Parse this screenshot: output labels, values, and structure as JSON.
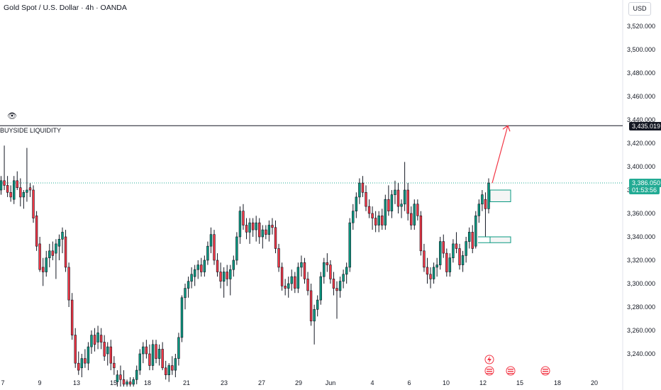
{
  "header": {
    "title": "Gold Spot / U.S. Dollar · 4h · OANDA",
    "currency": "USD"
  },
  "y_axis": [
    "3,520.000",
    "3,500.000",
    "3,480.000",
    "3,460.000",
    "3,440.000",
    "3,420.000",
    "3,400.000",
    "3,380.000",
    "3,360.000",
    "3,340.000",
    "3,320.000",
    "3,300.000",
    "3,280.000",
    "3,260.000",
    "3,240.000"
  ],
  "x_axis": [
    "7",
    "9",
    "13",
    "15",
    "18",
    "21",
    "23",
    "27",
    "29",
    "Jun",
    "4",
    "6",
    "10",
    "12",
    "15",
    "18",
    "20"
  ],
  "level_label": "3,435.019",
  "price_label": "3,386.050",
  "timer_label": "01:53:56",
  "annotation": "BUYSIDE LIQUIDITY",
  "icons": [
    "eye-icon",
    "lightning-icon",
    "us-flag-icon"
  ],
  "colors": {
    "up": "#089981",
    "down": "#f23645",
    "arrow": "#f23645",
    "level": "#131722",
    "price": "#22ab94"
  },
  "chart_data": {
    "type": "candlestick",
    "title": "Gold Spot / U.S. Dollar · 4h · OANDA",
    "ylim": [
      3212,
      3536
    ],
    "levels": [
      {
        "name": "BUYSIDE LIQUIDITY",
        "value": 3435.019
      }
    ],
    "current_price": 3386.05,
    "target_arrow": {
      "from": 3386,
      "to": 3435
    },
    "zones": [
      [
        3370,
        3380
      ],
      [
        3335,
        3340
      ]
    ],
    "candles_ohlc": [
      [
        3380,
        3392,
        3376,
        3388
      ],
      [
        3388,
        3418,
        3380,
        3384
      ],
      [
        3384,
        3392,
        3374,
        3378
      ],
      [
        3378,
        3384,
        3370,
        3374
      ],
      [
        3372,
        3392,
        3368,
        3388
      ],
      [
        3388,
        3396,
        3380,
        3382
      ],
      [
        3382,
        3390,
        3366,
        3374
      ],
      [
        3374,
        3380,
        3364,
        3378
      ],
      [
        3378,
        3416,
        3370,
        3380
      ],
      [
        3382,
        3386,
        3374,
        3380
      ],
      [
        3380,
        3384,
        3352,
        3356
      ],
      [
        3358,
        3362,
        3328,
        3332
      ],
      [
        3334,
        3340,
        3310,
        3312
      ],
      [
        3314,
        3322,
        3298,
        3310
      ],
      [
        3310,
        3328,
        3306,
        3322
      ],
      [
        3322,
        3334,
        3314,
        3328
      ],
      [
        3328,
        3336,
        3320,
        3324
      ],
      [
        3326,
        3338,
        3304,
        3334
      ],
      [
        3332,
        3342,
        3320,
        3338
      ],
      [
        3338,
        3348,
        3326,
        3344
      ],
      [
        3340,
        3346,
        3310,
        3314
      ],
      [
        3314,
        3318,
        3280,
        3286
      ],
      [
        3286,
        3292,
        3252,
        3256
      ],
      [
        3256,
        3262,
        3228,
        3232
      ],
      [
        3232,
        3242,
        3222,
        3226
      ],
      [
        3228,
        3240,
        3220,
        3236
      ],
      [
        3236,
        3244,
        3228,
        3232
      ],
      [
        3232,
        3250,
        3226,
        3246
      ],
      [
        3246,
        3260,
        3240,
        3256
      ],
      [
        3256,
        3262,
        3242,
        3248
      ],
      [
        3250,
        3264,
        3244,
        3258
      ],
      [
        3256,
        3262,
        3244,
        3250
      ],
      [
        3250,
        3256,
        3234,
        3238
      ],
      [
        3240,
        3250,
        3230,
        3246
      ],
      [
        3246,
        3252,
        3226,
        3232
      ],
      [
        3232,
        3238,
        3222,
        3228
      ],
      [
        3216,
        3226,
        3212,
        3222
      ],
      [
        3222,
        3230,
        3212,
        3218
      ],
      [
        3218,
        3226,
        3212,
        3214
      ],
      [
        3214,
        3218,
        3212,
        3216
      ],
      [
        3216,
        3220,
        3212,
        3214
      ],
      [
        3214,
        3220,
        3212,
        3218
      ],
      [
        3218,
        3230,
        3214,
        3226
      ],
      [
        3226,
        3244,
        3222,
        3240
      ],
      [
        3240,
        3250,
        3232,
        3246
      ],
      [
        3246,
        3252,
        3236,
        3240
      ],
      [
        3240,
        3248,
        3226,
        3230
      ],
      [
        3230,
        3252,
        3226,
        3248
      ],
      [
        3248,
        3252,
        3232,
        3236
      ],
      [
        3236,
        3248,
        3230,
        3244
      ],
      [
        3244,
        3250,
        3226,
        3228
      ],
      [
        3228,
        3234,
        3218,
        3222
      ],
      [
        3222,
        3232,
        3216,
        3230
      ],
      [
        3230,
        3238,
        3222,
        3226
      ],
      [
        3226,
        3240,
        3220,
        3236
      ],
      [
        3236,
        3258,
        3230,
        3254
      ],
      [
        3254,
        3290,
        3250,
        3288
      ],
      [
        3288,
        3300,
        3278,
        3296
      ],
      [
        3296,
        3306,
        3288,
        3302
      ],
      [
        3302,
        3314,
        3296,
        3308
      ],
      [
        3306,
        3316,
        3298,
        3312
      ],
      [
        3312,
        3320,
        3304,
        3316
      ],
      [
        3316,
        3322,
        3306,
        3310
      ],
      [
        3310,
        3324,
        3306,
        3320
      ],
      [
        3320,
        3336,
        3316,
        3332
      ],
      [
        3332,
        3348,
        3326,
        3342
      ],
      [
        3342,
        3346,
        3316,
        3320
      ],
      [
        3320,
        3326,
        3306,
        3310
      ],
      [
        3310,
        3318,
        3296,
        3302
      ],
      [
        3302,
        3314,
        3288,
        3310
      ],
      [
        3310,
        3316,
        3298,
        3304
      ],
      [
        3304,
        3316,
        3290,
        3312
      ],
      [
        3312,
        3324,
        3306,
        3320
      ],
      [
        3320,
        3344,
        3316,
        3340
      ],
      [
        3340,
        3366,
        3334,
        3362
      ],
      [
        3362,
        3368,
        3346,
        3350
      ],
      [
        3350,
        3356,
        3338,
        3344
      ],
      [
        3344,
        3356,
        3334,
        3352
      ],
      [
        3352,
        3356,
        3340,
        3346
      ],
      [
        3346,
        3358,
        3336,
        3352
      ],
      [
        3352,
        3356,
        3334,
        3340
      ],
      [
        3340,
        3350,
        3330,
        3346
      ],
      [
        3346,
        3350,
        3338,
        3342
      ],
      [
        3342,
        3354,
        3336,
        3350
      ],
      [
        3350,
        3356,
        3342,
        3348
      ],
      [
        3348,
        3354,
        3326,
        3330
      ],
      [
        3330,
        3334,
        3310,
        3314
      ],
      [
        3314,
        3318,
        3294,
        3298
      ],
      [
        3298,
        3304,
        3290,
        3296
      ],
      [
        3296,
        3306,
        3288,
        3300
      ],
      [
        3300,
        3312,
        3294,
        3306
      ],
      [
        3306,
        3310,
        3292,
        3296
      ],
      [
        3296,
        3318,
        3292,
        3314
      ],
      [
        3314,
        3324,
        3306,
        3318
      ],
      [
        3318,
        3322,
        3300,
        3304
      ],
      [
        3304,
        3310,
        3290,
        3294
      ],
      [
        3294,
        3300,
        3264,
        3268
      ],
      [
        3268,
        3282,
        3248,
        3278
      ],
      [
        3278,
        3290,
        3272,
        3286
      ],
      [
        3286,
        3310,
        3282,
        3306
      ],
      [
        3306,
        3322,
        3300,
        3318
      ],
      [
        3318,
        3326,
        3310,
        3316
      ],
      [
        3316,
        3320,
        3300,
        3304
      ],
      [
        3304,
        3310,
        3290,
        3296
      ],
      [
        3296,
        3302,
        3270,
        3294
      ],
      [
        3294,
        3306,
        3288,
        3302
      ],
      [
        3302,
        3312,
        3296,
        3308
      ],
      [
        3308,
        3318,
        3300,
        3314
      ],
      [
        3314,
        3356,
        3310,
        3352
      ],
      [
        3352,
        3368,
        3346,
        3362
      ],
      [
        3362,
        3378,
        3356,
        3374
      ],
      [
        3374,
        3390,
        3368,
        3386
      ],
      [
        3386,
        3392,
        3374,
        3378
      ],
      [
        3378,
        3384,
        3362,
        3366
      ],
      [
        3366,
        3372,
        3356,
        3360
      ],
      [
        3360,
        3366,
        3346,
        3356
      ],
      [
        3356,
        3362,
        3344,
        3350
      ],
      [
        3350,
        3362,
        3344,
        3358
      ],
      [
        3358,
        3364,
        3346,
        3350
      ],
      [
        3350,
        3376,
        3346,
        3372
      ],
      [
        3372,
        3384,
        3358,
        3362
      ],
      [
        3362,
        3380,
        3356,
        3376
      ],
      [
        3376,
        3388,
        3368,
        3380
      ],
      [
        3380,
        3386,
        3360,
        3366
      ],
      [
        3366,
        3372,
        3356,
        3368
      ],
      [
        3368,
        3404,
        3362,
        3380
      ],
      [
        3380,
        3386,
        3354,
        3360
      ],
      [
        3360,
        3366,
        3346,
        3350
      ],
      [
        3350,
        3372,
        3346,
        3368
      ],
      [
        3368,
        3372,
        3354,
        3358
      ],
      [
        3358,
        3362,
        3324,
        3328
      ],
      [
        3328,
        3334,
        3310,
        3314
      ],
      [
        3314,
        3322,
        3300,
        3308
      ],
      [
        3308,
        3314,
        3296,
        3304
      ],
      [
        3304,
        3318,
        3300,
        3314
      ],
      [
        3314,
        3322,
        3306,
        3316
      ],
      [
        3316,
        3340,
        3312,
        3336
      ],
      [
        3336,
        3342,
        3322,
        3326
      ],
      [
        3326,
        3330,
        3306,
        3310
      ],
      [
        3310,
        3326,
        3306,
        3322
      ],
      [
        3322,
        3338,
        3318,
        3334
      ],
      [
        3334,
        3344,
        3326,
        3330
      ],
      [
        3330,
        3334,
        3312,
        3316
      ],
      [
        3316,
        3328,
        3310,
        3324
      ],
      [
        3324,
        3340,
        3318,
        3336
      ],
      [
        3336,
        3348,
        3330,
        3344
      ],
      [
        3344,
        3350,
        3326,
        3330
      ],
      [
        3332,
        3362,
        3330,
        3358
      ],
      [
        3358,
        3372,
        3352,
        3368
      ],
      [
        3368,
        3380,
        3362,
        3376
      ],
      [
        3372,
        3378,
        3340,
        3364
      ],
      [
        3364,
        3390,
        3360,
        3386
      ]
    ]
  }
}
